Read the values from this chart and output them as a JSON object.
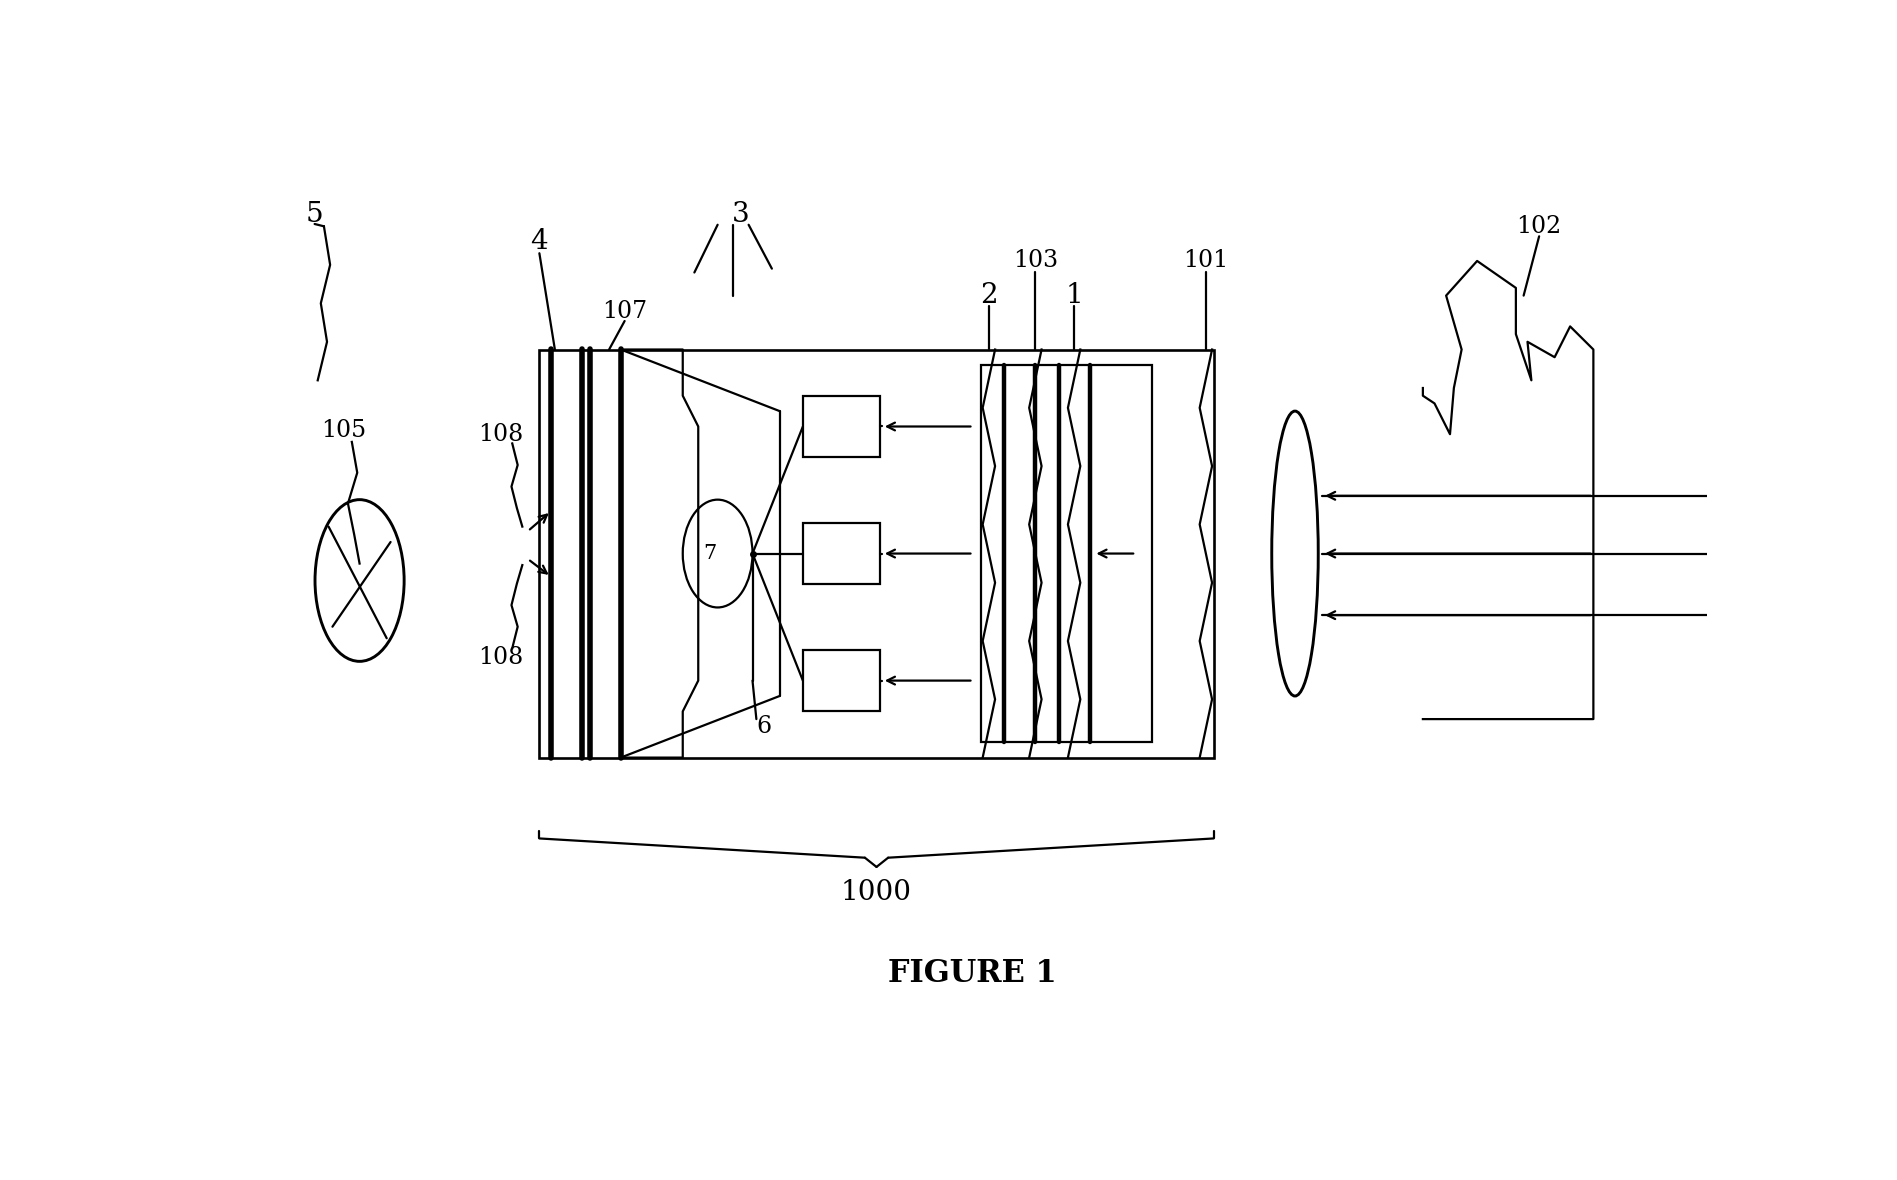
{
  "fig_width": 18.97,
  "fig_height": 11.8,
  "bg": "#ffffff",
  "lc": "#000000",
  "lw": 1.6
}
